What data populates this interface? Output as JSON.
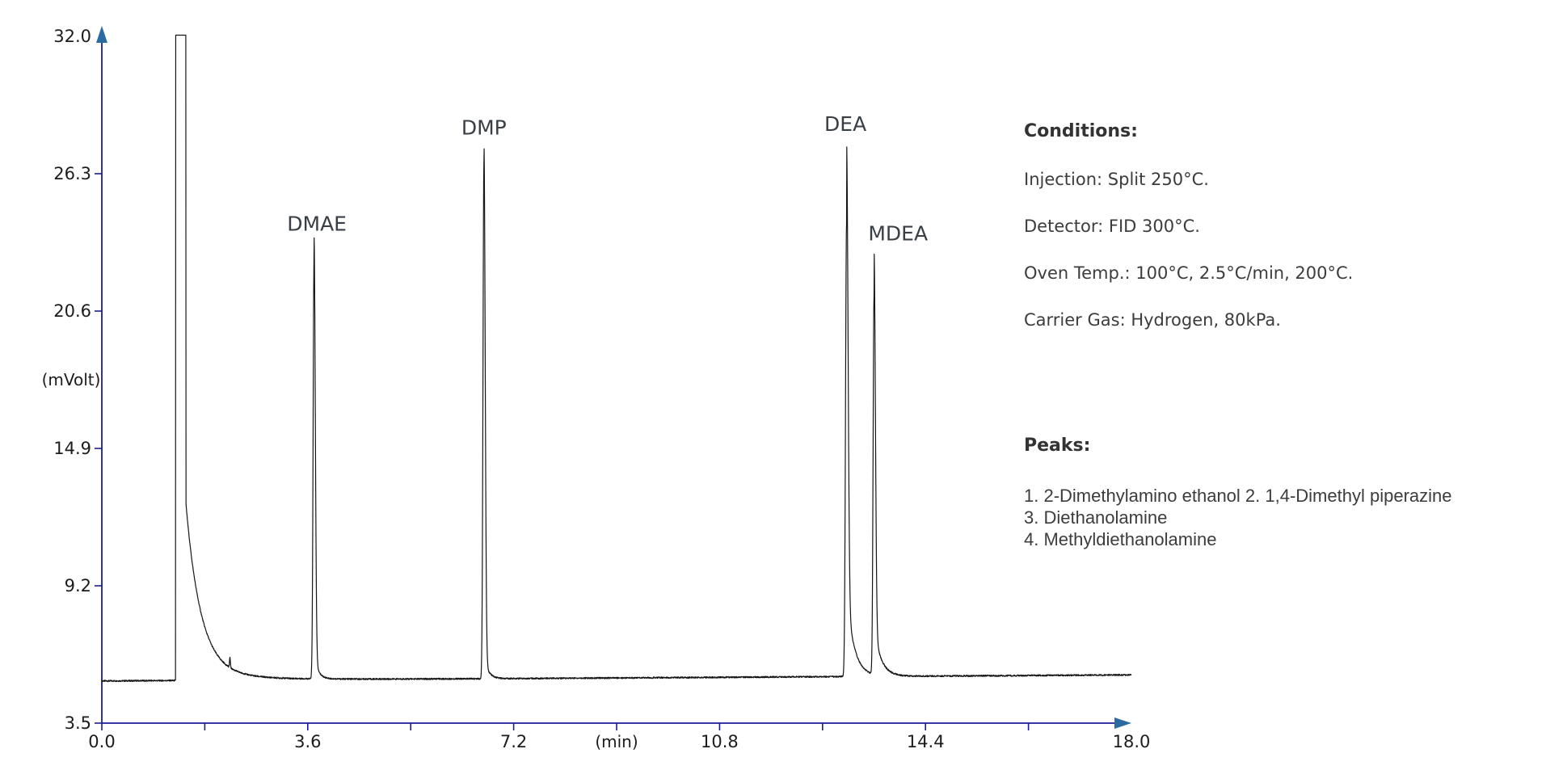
{
  "chart_data": {
    "type": "line",
    "title": "",
    "xlabel": "(min)",
    "ylabel": "(mVolt)",
    "xlim": [
      0.0,
      18.0
    ],
    "ylim": [
      3.5,
      32.0
    ],
    "grid": false,
    "legend": "none",
    "x_major_ticks": [
      0.0,
      3.6,
      7.2,
      10.8,
      14.4,
      18.0
    ],
    "x_major_tick_labels": [
      "0.0",
      "3.6",
      "7.2",
      "10.8",
      "14.4",
      "18.0"
    ],
    "x_minor_ticks": [
      1.8,
      5.4,
      9.0,
      12.6,
      16.2
    ],
    "y_ticks": [
      32.0,
      26.3,
      20.6,
      14.9,
      9.2,
      3.5
    ],
    "y_tick_labels": [
      "32.0",
      "26.3",
      "20.6",
      "14.9",
      "9.2",
      "3.5"
    ],
    "axis_color": "#1c1c96",
    "arrowhead_color": "#2a6ba2",
    "trace_color": "#151515",
    "peak_label_color": "#3a3f45",
    "tick_label_color": "#1c1c1c",
    "baseline": {
      "start_mv": 5.25,
      "drift_mv_per_min": 0.014,
      "noise_mv": 0.06
    },
    "clip_mv": 32.05,
    "solvent_peak": {
      "t_start_min": 1.29,
      "t_end_min": 1.47,
      "clipped": true,
      "tail_amp_mv": 7.0,
      "tail_tau_min": 0.26,
      "tail2_amp_mv": 0.35,
      "tail2_tau_min": 1.0
    },
    "minor_impurity": {
      "t_min": 2.24,
      "height_mv": 0.4,
      "sigma_min": 0.008
    },
    "peaks": [
      {
        "peak_no": 1,
        "label": "DMAE",
        "compound": "2-Dimethylamino ethanol",
        "t_min": 3.71,
        "apex_mv": 23.7,
        "sigma_left_min": 0.016,
        "sigma_right_min": 0.022,
        "tail_amp_mv": 1.0,
        "tail_tau_min": 0.07,
        "label_t_min": 3.76,
        "label_mv": 24.2
      },
      {
        "peak_no": 2,
        "label": "DMP",
        "compound": "1,4-Dimethyl piperazine",
        "t_min": 6.68,
        "apex_mv": 27.75,
        "sigma_left_min": 0.016,
        "sigma_right_min": 0.022,
        "tail_amp_mv": 1.0,
        "tail_tau_min": 0.07,
        "label_t_min": 6.68,
        "label_mv": 28.2
      },
      {
        "peak_no": 3,
        "label": "DEA",
        "compound": "Diethanolamine",
        "t_min": 13.02,
        "apex_mv": 27.75,
        "sigma_left_min": 0.018,
        "sigma_right_min": 0.026,
        "tail_amp_mv": 3.5,
        "tail_tau_min": 0.13,
        "label_t_min": 13.0,
        "label_mv": 28.35
      },
      {
        "peak_no": 4,
        "label": "MDEA",
        "compound": "Methyldiethanolamine",
        "t_min": 13.5,
        "apex_mv": 23.15,
        "sigma_left_min": 0.016,
        "sigma_right_min": 0.024,
        "tail_amp_mv": 2.0,
        "tail_tau_min": 0.12,
        "label_t_min": 13.92,
        "label_mv": 23.8
      }
    ]
  },
  "conditions": {
    "heading": "Conditions:",
    "lines": [
      "Injection: Split 250°C.",
      "Detector: FID 300°C.",
      "Oven Temp.: 100°C, 2.5°C/min, 200°C.",
      "Carrier Gas: Hydrogen, 80kPa."
    ]
  },
  "peaks_list": {
    "heading": "Peaks:",
    "lines": [
      "1. 2-Dimethylamino ethanol 2. 1,4-Dimethyl piperazine",
      "3. Diethanolamine",
      "4. Methyldiethanolamine"
    ]
  }
}
